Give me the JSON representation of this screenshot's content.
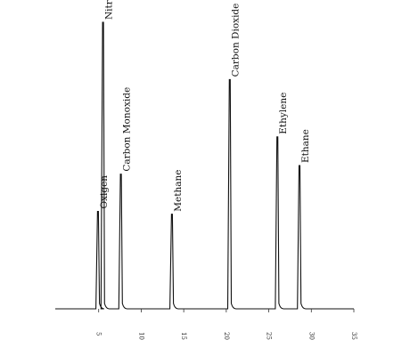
{
  "chart_data": {
    "type": "line",
    "title": "",
    "xlabel": "",
    "ylabel": "",
    "xlim": [
      0,
      35
    ],
    "ylim": [
      0,
      100
    ],
    "grid": false,
    "x_ticks": [
      5,
      10,
      15,
      20,
      25,
      30,
      35
    ],
    "x_tick_labels": [
      "5",
      "10",
      "15",
      "20",
      "25",
      "30",
      "35"
    ],
    "peaks": [
      {
        "name": "Oxigen",
        "x": 4.9,
        "height": 34
      },
      {
        "name": "Nitrogen",
        "x": 5.5,
        "height": 100
      },
      {
        "name": "Carbon Monoxide",
        "x": 7.6,
        "height": 47
      },
      {
        "name": "Methane",
        "x": 13.6,
        "height": 33
      },
      {
        "name": "Carbon Dioxide",
        "x": 20.4,
        "height": 80
      },
      {
        "name": "Ethylene",
        "x": 26.0,
        "height": 60
      },
      {
        "name": "Ethane",
        "x": 28.6,
        "height": 50
      }
    ]
  }
}
